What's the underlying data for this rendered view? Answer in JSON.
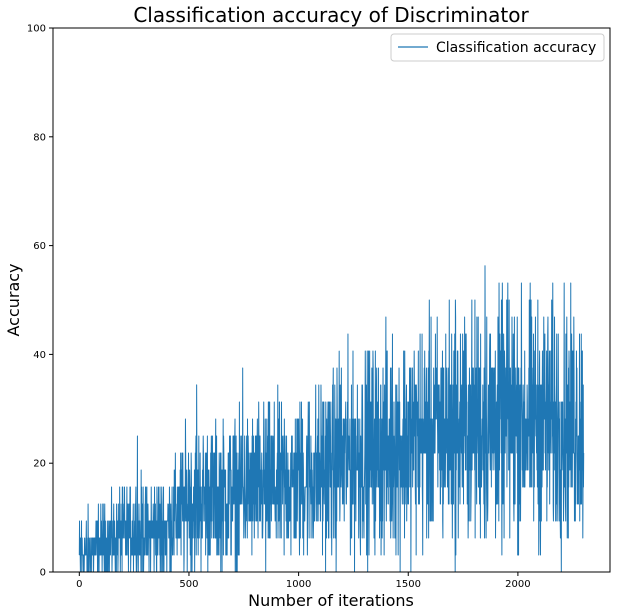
{
  "chart_data": {
    "type": "line",
    "title": "Classification accuracy of Discriminator",
    "xlabel": "Number of iterations",
    "ylabel": "Accuracy",
    "xlim": [
      -120,
      2420
    ],
    "ylim": [
      0,
      100
    ],
    "xticks": [
      0,
      500,
      1000,
      1500,
      2000
    ],
    "yticks": [
      0,
      20,
      40,
      60,
      80,
      100
    ],
    "legend_position": "upper right",
    "grid": false,
    "color": "#1f77b4",
    "accuracy_step": 3.125,
    "series": [
      {
        "name": "Classification accuracy",
        "x_start": 0,
        "x_end": 2300,
        "trend": [
          {
            "x": 0,
            "y": 3
          },
          {
            "x": 100,
            "y": 5
          },
          {
            "x": 200,
            "y": 7
          },
          {
            "x": 400,
            "y": 8
          },
          {
            "x": 500,
            "y": 13
          },
          {
            "x": 750,
            "y": 15
          },
          {
            "x": 1000,
            "y": 17
          },
          {
            "x": 1250,
            "y": 21
          },
          {
            "x": 1500,
            "y": 24
          },
          {
            "x": 1750,
            "y": 27
          },
          {
            "x": 2000,
            "y": 28
          },
          {
            "x": 2300,
            "y": 27
          }
        ],
        "notable_points": [
          {
            "x": 10,
            "y": 9.4
          },
          {
            "x": 265,
            "y": 25
          },
          {
            "x": 535,
            "y": 34.4
          },
          {
            "x": 745,
            "y": 37.5
          },
          {
            "x": 850,
            "y": 0
          },
          {
            "x": 1185,
            "y": 40.6
          },
          {
            "x": 1715,
            "y": 50
          },
          {
            "x": 1850,
            "y": 56.3
          },
          {
            "x": 1960,
            "y": 50
          }
        ],
        "y_min": 0,
        "y_max": 56.3
      }
    ]
  }
}
